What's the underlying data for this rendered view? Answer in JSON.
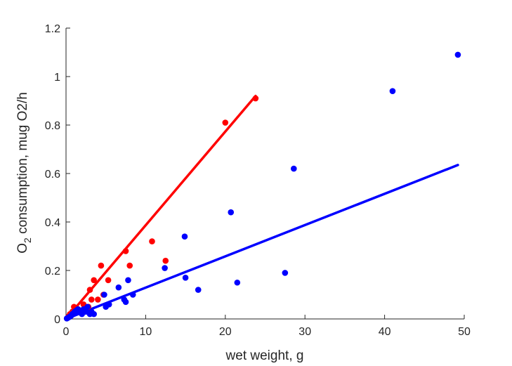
{
  "chart_data": {
    "type": "scatter",
    "xlabel": "wet weight, g",
    "ylabel": {
      "prefix": "O",
      "subscript": "2",
      "rest": " consumption, mug O2/h"
    },
    "xlim": [
      0,
      50
    ],
    "ylim": [
      0,
      1.2
    ],
    "xticks": [
      0,
      10,
      20,
      30,
      40,
      50
    ],
    "yticks": [
      0,
      0.2,
      0.4,
      0.6,
      0.8,
      1,
      1.2
    ],
    "xtick_labels": [
      "0",
      "10",
      "20",
      "30",
      "40",
      "50"
    ],
    "ytick_labels": [
      "0",
      "0.2",
      "0.4",
      "0.6",
      "0.8",
      "1",
      "1.2"
    ],
    "grid": false,
    "series": [
      {
        "color": "#ff0000",
        "points": [
          [
            0.3,
            0.01
          ],
          [
            0.5,
            0.02
          ],
          [
            0.8,
            0.03
          ],
          [
            1.0,
            0.05
          ],
          [
            1.5,
            0.04
          ],
          [
            2.2,
            0.06
          ],
          [
            2.8,
            0.05
          ],
          [
            3.0,
            0.12
          ],
          [
            3.2,
            0.08
          ],
          [
            3.5,
            0.16
          ],
          [
            4.0,
            0.08
          ],
          [
            4.4,
            0.22
          ],
          [
            4.7,
            0.1
          ],
          [
            5.3,
            0.16
          ],
          [
            7.5,
            0.28
          ],
          [
            8.0,
            0.22
          ],
          [
            10.8,
            0.32
          ],
          [
            12.5,
            0.24
          ],
          [
            20.0,
            0.81
          ],
          [
            23.8,
            0.91
          ]
        ],
        "fit": [
          [
            0,
            0
          ],
          [
            23.8,
            0.92
          ]
        ]
      },
      {
        "color": "#0000ff",
        "points": [
          [
            0.1,
            0.002
          ],
          [
            0.2,
            0.004
          ],
          [
            0.3,
            0.006
          ],
          [
            0.4,
            0.008
          ],
          [
            0.5,
            0.01
          ],
          [
            0.6,
            0.012
          ],
          [
            0.7,
            0.015
          ],
          [
            0.8,
            0.02
          ],
          [
            0.9,
            0.022
          ],
          [
            1.0,
            0.025
          ],
          [
            1.1,
            0.03
          ],
          [
            1.2,
            0.03
          ],
          [
            1.3,
            0.035
          ],
          [
            1.5,
            0.04
          ],
          [
            1.7,
            0.03
          ],
          [
            2.0,
            0.02
          ],
          [
            2.2,
            0.04
          ],
          [
            2.5,
            0.03
          ],
          [
            2.7,
            0.05
          ],
          [
            3.0,
            0.02
          ],
          [
            3.2,
            0.03
          ],
          [
            3.5,
            0.02
          ],
          [
            4.8,
            0.1
          ],
          [
            5.0,
            0.05
          ],
          [
            5.4,
            0.06
          ],
          [
            6.6,
            0.13
          ],
          [
            7.3,
            0.08
          ],
          [
            7.5,
            0.07
          ],
          [
            7.8,
            0.16
          ],
          [
            8.4,
            0.1
          ],
          [
            12.4,
            0.21
          ],
          [
            14.9,
            0.34
          ],
          [
            15.0,
            0.17
          ],
          [
            16.6,
            0.12
          ],
          [
            20.7,
            0.44
          ],
          [
            21.5,
            0.15
          ],
          [
            27.5,
            0.19
          ],
          [
            28.6,
            0.62
          ],
          [
            41.0,
            0.94
          ],
          [
            49.2,
            1.09
          ]
        ],
        "fit": [
          [
            0,
            0
          ],
          [
            49.2,
            0.635
          ]
        ]
      }
    ]
  }
}
